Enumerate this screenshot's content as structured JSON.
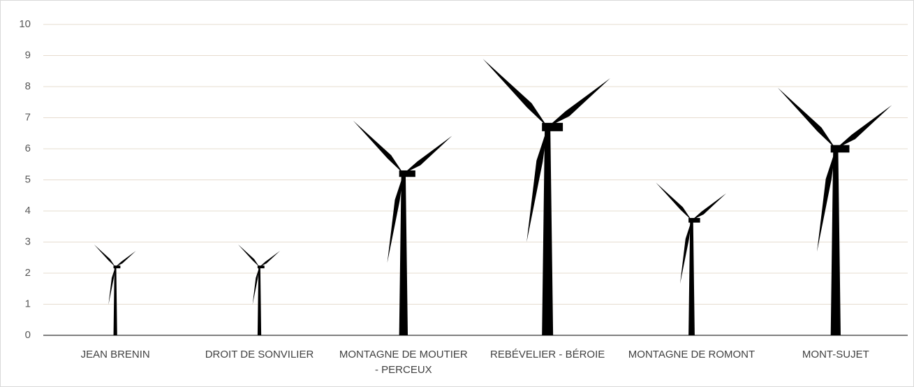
{
  "chart_data": {
    "type": "pictograph",
    "categories": [
      "JEAN BRENIN",
      "DROIT DE SONVILIER",
      "MONTAGNE DE MOUTIER - PERCEUX",
      "REBÉVELIER - BÉROIE",
      "MONTAGNE DE ROMONT",
      "MONT-SUJET"
    ],
    "values": [
      2.2,
      2.2,
      5.2,
      6.7,
      3.7,
      6.0
    ],
    "color": "#000000",
    "ylim": [
      0,
      10
    ],
    "yticks": [
      0,
      1,
      2,
      3,
      4,
      5,
      6,
      7,
      8,
      9,
      10
    ],
    "grid": true
  }
}
